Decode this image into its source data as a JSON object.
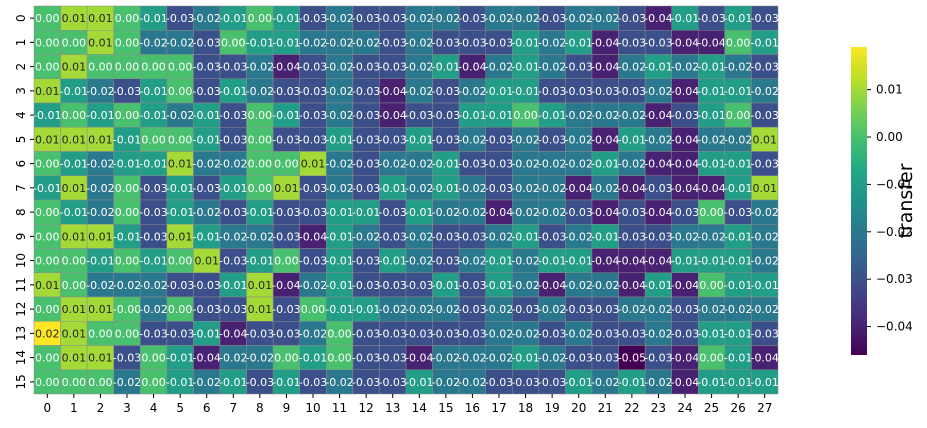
{
  "chart_data": {
    "type": "heatmap",
    "title": "",
    "xlabel": "",
    "ylabel": "",
    "x_ticks": [
      "0",
      "1",
      "2",
      "3",
      "4",
      "5",
      "6",
      "7",
      "8",
      "9",
      "10",
      "11",
      "12",
      "13",
      "14",
      "15",
      "16",
      "17",
      "18",
      "19",
      "20",
      "21",
      "22",
      "23",
      "24",
      "25",
      "26",
      "27"
    ],
    "y_ticks": [
      "0",
      "1",
      "2",
      "3",
      "4",
      "5",
      "6",
      "7",
      "8",
      "9",
      "10",
      "11",
      "12",
      "13",
      "14",
      "15"
    ],
    "colorbar": {
      "label": "transfer",
      "colormap": "viridis",
      "vmin": -0.046,
      "vmax": 0.019,
      "ticks": [
        0.01,
        0.0,
        -0.01,
        -0.02,
        -0.03,
        -0.04
      ],
      "tick_labels": [
        "0.01",
        "0.00",
        "−0.01",
        "−0.02",
        "−0.03",
        "−0.04"
      ]
    },
    "values": [
      [
        0.0,
        0.01,
        0.01,
        0.0,
        -0.01,
        -0.03,
        -0.02,
        -0.01,
        0.0,
        -0.01,
        -0.03,
        -0.02,
        -0.03,
        -0.03,
        -0.02,
        -0.02,
        -0.03,
        -0.02,
        -0.02,
        -0.03,
        -0.02,
        -0.02,
        -0.03,
        -0.04,
        -0.01,
        -0.03,
        -0.01,
        -0.03
      ],
      [
        0.0,
        0.0,
        0.01,
        0.0,
        -0.02,
        -0.02,
        -0.03,
        0.0,
        -0.01,
        -0.01,
        -0.02,
        -0.02,
        -0.02,
        -0.03,
        -0.02,
        -0.03,
        -0.03,
        -0.03,
        -0.01,
        -0.02,
        -0.01,
        -0.04,
        -0.03,
        -0.03,
        -0.04,
        -0.04,
        0.0,
        -0.01
      ],
      [
        0.0,
        0.01,
        0.0,
        0.0,
        0.0,
        0.0,
        -0.03,
        -0.03,
        -0.02,
        -0.04,
        -0.03,
        -0.02,
        -0.03,
        -0.03,
        -0.02,
        -0.01,
        -0.04,
        -0.02,
        -0.01,
        -0.02,
        -0.03,
        -0.04,
        -0.02,
        -0.01,
        -0.02,
        -0.01,
        -0.02,
        -0.03
      ],
      [
        0.01,
        -0.01,
        -0.02,
        -0.03,
        -0.01,
        0.0,
        -0.03,
        -0.01,
        -0.02,
        -0.03,
        -0.03,
        -0.02,
        -0.03,
        -0.04,
        -0.02,
        -0.03,
        -0.02,
        -0.01,
        -0.01,
        -0.03,
        -0.03,
        -0.03,
        -0.03,
        -0.02,
        -0.04,
        -0.01,
        -0.01,
        -0.02
      ],
      [
        -0.01,
        0.0,
        -0.01,
        0.0,
        -0.01,
        -0.02,
        -0.01,
        -0.03,
        0.0,
        -0.01,
        -0.03,
        -0.02,
        -0.03,
        -0.04,
        -0.03,
        -0.03,
        -0.01,
        -0.01,
        0.0,
        -0.01,
        -0.02,
        -0.02,
        -0.02,
        -0.04,
        -0.03,
        -0.01,
        0.0,
        -0.03
      ],
      [
        0.01,
        0.01,
        0.01,
        -0.01,
        0.0,
        0.0,
        -0.01,
        -0.03,
        0.0,
        -0.03,
        -0.03,
        -0.01,
        -0.03,
        -0.03,
        -0.01,
        -0.03,
        -0.02,
        -0.03,
        -0.02,
        -0.03,
        -0.02,
        -0.04,
        -0.01,
        -0.02,
        -0.04,
        -0.02,
        -0.02,
        0.01
      ],
      [
        0.0,
        -0.01,
        -0.02,
        -0.01,
        -0.01,
        0.01,
        -0.02,
        -0.02,
        0.0,
        0.0,
        0.01,
        -0.02,
        -0.03,
        -0.02,
        -0.02,
        -0.01,
        -0.03,
        -0.03,
        -0.02,
        -0.02,
        -0.02,
        -0.01,
        -0.02,
        -0.04,
        -0.04,
        -0.01,
        -0.01,
        -0.03
      ],
      [
        -0.01,
        0.01,
        -0.02,
        0.0,
        -0.03,
        -0.01,
        -0.03,
        -0.01,
        0.0,
        0.01,
        -0.03,
        -0.02,
        -0.03,
        -0.01,
        -0.02,
        -0.01,
        -0.02,
        -0.03,
        -0.02,
        -0.02,
        -0.04,
        -0.02,
        -0.04,
        -0.03,
        -0.04,
        -0.04,
        -0.01,
        0.01
      ],
      [
        0.0,
        -0.01,
        -0.02,
        0.0,
        -0.03,
        -0.01,
        -0.02,
        -0.03,
        -0.01,
        -0.03,
        -0.03,
        -0.01,
        -0.01,
        -0.03,
        -0.01,
        -0.02,
        -0.02,
        -0.04,
        -0.02,
        -0.02,
        -0.03,
        -0.04,
        -0.03,
        -0.04,
        -0.03,
        0.0,
        -0.03,
        -0.02
      ],
      [
        0.0,
        0.01,
        0.01,
        -0.01,
        -0.03,
        0.01,
        -0.01,
        -0.02,
        -0.02,
        -0.03,
        -0.04,
        -0.01,
        -0.02,
        -0.03,
        -0.02,
        -0.03,
        -0.03,
        -0.02,
        -0.01,
        -0.03,
        -0.02,
        -0.01,
        -0.03,
        -0.03,
        -0.02,
        -0.02,
        -0.01,
        -0.02
      ],
      [
        0.0,
        0.0,
        -0.01,
        0.0,
        -0.01,
        0.0,
        0.01,
        -0.03,
        -0.01,
        0.0,
        -0.03,
        -0.01,
        -0.03,
        -0.01,
        -0.02,
        -0.03,
        -0.02,
        -0.01,
        -0.02,
        -0.01,
        -0.01,
        -0.04,
        -0.04,
        -0.04,
        -0.01,
        -0.01,
        -0.01,
        -0.02
      ],
      [
        0.01,
        0.0,
        -0.02,
        -0.02,
        -0.02,
        -0.03,
        -0.03,
        -0.01,
        0.01,
        -0.04,
        -0.02,
        -0.01,
        -0.03,
        -0.03,
        -0.03,
        -0.01,
        -0.03,
        -0.01,
        -0.02,
        -0.04,
        -0.02,
        -0.02,
        -0.04,
        -0.01,
        -0.04,
        0.0,
        -0.01,
        -0.01
      ],
      [
        0.0,
        0.01,
        0.01,
        -0.0,
        -0.02,
        0.0,
        -0.03,
        -0.03,
        0.01,
        -0.03,
        0.0,
        -0.01,
        -0.01,
        -0.02,
        -0.02,
        -0.02,
        -0.03,
        -0.02,
        -0.03,
        -0.02,
        -0.03,
        -0.03,
        -0.02,
        -0.02,
        -0.03,
        -0.02,
        -0.02,
        -0.02
      ],
      [
        0.02,
        0.01,
        0.0,
        0.0,
        -0.03,
        -0.03,
        -0.01,
        -0.04,
        -0.03,
        -0.03,
        -0.02,
        0.0,
        -0.03,
        -0.03,
        -0.03,
        -0.03,
        -0.03,
        -0.02,
        -0.02,
        -0.03,
        -0.02,
        -0.03,
        -0.03,
        -0.02,
        -0.03,
        -0.01,
        -0.01,
        -0.03
      ],
      [
        0.0,
        0.01,
        0.01,
        -0.03,
        0.0,
        -0.01,
        -0.04,
        -0.02,
        -0.02,
        0.0,
        -0.01,
        0.0,
        -0.03,
        -0.03,
        -0.04,
        -0.02,
        -0.02,
        -0.02,
        -0.01,
        -0.02,
        -0.03,
        -0.03,
        -0.05,
        -0.03,
        -0.04,
        0.0,
        -0.01,
        -0.04
      ],
      [
        0.0,
        0.0,
        0.0,
        -0.02,
        0.0,
        -0.01,
        -0.02,
        -0.01,
        -0.03,
        -0.01,
        -0.03,
        -0.02,
        -0.03,
        -0.03,
        -0.01,
        -0.02,
        -0.02,
        -0.03,
        -0.03,
        -0.03,
        -0.01,
        -0.02,
        -0.01,
        -0.02,
        -0.04,
        -0.01,
        -0.01,
        -0.01
      ]
    ],
    "labels": [
      [
        "0.00",
        "0.01",
        "0.01",
        "0.00",
        "-0.01",
        "-0.03",
        "-0.02",
        "-0.01",
        "0.00",
        "-0.01",
        "-0.03",
        "-0.02",
        "-0.03",
        "-0.03",
        "-0.02",
        "-0.02",
        "-0.03",
        "-0.02",
        "-0.02",
        "-0.03",
        "-0.02",
        "-0.02",
        "-0.03",
        "-0.04",
        "-0.01",
        "-0.03",
        "-0.01",
        "-0.03"
      ],
      [
        "0.00",
        "0.00",
        "0.01",
        "0.00",
        "-0.02",
        "-0.02",
        "-0.03",
        "0.00",
        "-0.01",
        "-0.01",
        "-0.02",
        "-0.02",
        "-0.02",
        "-0.03",
        "-0.02",
        "-0.03",
        "-0.03",
        "-0.03",
        "-0.01",
        "-0.02",
        "-0.01",
        "-0.04",
        "-0.03",
        "-0.03",
        "-0.04",
        "-0.04",
        "0.00",
        "-0.01"
      ],
      [
        "0.00",
        "0.01",
        "0.00",
        "0.00",
        "0.00",
        "0.00",
        "-0.03",
        "-0.03",
        "-0.02",
        "-0.04",
        "-0.03",
        "-0.02",
        "-0.03",
        "-0.03",
        "-0.02",
        "-0.01",
        "-0.04",
        "-0.02",
        "-0.01",
        "-0.02",
        "-0.03",
        "-0.04",
        "-0.02",
        "-0.01",
        "-0.02",
        "-0.01",
        "-0.02",
        "-0.03"
      ],
      [
        "0.01",
        "-0.01",
        "-0.02",
        "-0.03",
        "-0.01",
        "0.00",
        "-0.03",
        "-0.01",
        "-0.02",
        "-0.03",
        "-0.03",
        "-0.02",
        "-0.03",
        "-0.04",
        "-0.02",
        "-0.03",
        "-0.02",
        "-0.01",
        "-0.01",
        "-0.03",
        "-0.03",
        "-0.03",
        "-0.03",
        "-0.02",
        "-0.04",
        "-0.01",
        "-0.01",
        "-0.02"
      ],
      [
        "-0.01",
        "0.00",
        "-0.01",
        "0.00",
        "-0.01",
        "-0.02",
        "-0.01",
        "-0.03",
        "0.00",
        "-0.01",
        "-0.03",
        "-0.02",
        "-0.03",
        "-0.04",
        "-0.03",
        "-0.03",
        "-0.01",
        "-0.01",
        "0.00",
        "-0.01",
        "-0.02",
        "-0.02",
        "-0.02",
        "-0.04",
        "-0.03",
        "-0.01",
        "0.00",
        "-0.03"
      ],
      [
        "0.01",
        "0.01",
        "0.01",
        "-0.01",
        "0.00",
        "0.00",
        "-0.01",
        "-0.03",
        "0.00",
        "-0.03",
        "-0.03",
        "-0.01",
        "-0.03",
        "-0.03",
        "-0.01",
        "-0.03",
        "-0.02",
        "-0.03",
        "-0.02",
        "-0.03",
        "-0.02",
        "-0.04",
        "-0.01",
        "-0.02",
        "-0.04",
        "-0.02",
        "-0.02",
        "0.01"
      ],
      [
        "0.00",
        "-0.01",
        "-0.02",
        "-0.01",
        "-0.01",
        "0.01",
        "-0.02",
        "-0.02",
        "0.00",
        "0.00",
        "0.01",
        "-0.02",
        "-0.03",
        "-0.02",
        "-0.02",
        "-0.01",
        "-0.03",
        "-0.03",
        "-0.02",
        "-0.02",
        "-0.02",
        "-0.01",
        "-0.02",
        "-0.04",
        "-0.04",
        "-0.01",
        "-0.01",
        "-0.03"
      ],
      [
        "-0.01",
        "0.01",
        "-0.02",
        "0.00",
        "-0.03",
        "-0.01",
        "-0.03",
        "-0.01",
        "0.00",
        "0.01",
        "-0.03",
        "-0.02",
        "-0.03",
        "-0.01",
        "-0.02",
        "-0.01",
        "-0.02",
        "-0.03",
        "-0.02",
        "-0.02",
        "-0.04",
        "-0.02",
        "-0.04",
        "-0.03",
        "-0.04",
        "-0.04",
        "-0.01",
        "0.01"
      ],
      [
        "0.00",
        "-0.01",
        "-0.02",
        "0.00",
        "-0.03",
        "-0.01",
        "-0.02",
        "-0.03",
        "-0.01",
        "-0.03",
        "-0.03",
        "-0.01",
        "-0.01",
        "-0.03",
        "-0.01",
        "-0.02",
        "-0.02",
        "-0.04",
        "-0.02",
        "-0.02",
        "-0.03",
        "-0.04",
        "-0.03",
        "-0.04",
        "-0.03",
        "0.00",
        "-0.03",
        "-0.02"
      ],
      [
        "0.00",
        "0.01",
        "0.01",
        "-0.01",
        "-0.03",
        "0.01",
        "-0.01",
        "-0.02",
        "-0.02",
        "-0.03",
        "-0.04",
        "-0.01",
        "-0.02",
        "-0.03",
        "-0.02",
        "-0.03",
        "-0.03",
        "-0.02",
        "-0.01",
        "-0.03",
        "-0.02",
        "-0.01",
        "-0.03",
        "-0.03",
        "-0.02",
        "-0.02",
        "-0.01",
        "-0.02"
      ],
      [
        "0.00",
        "0.00",
        "-0.01",
        "0.00",
        "-0.01",
        "0.00",
        "0.01",
        "-0.03",
        "-0.01",
        "0.00",
        "-0.03",
        "-0.01",
        "-0.03",
        "-0.01",
        "-0.02",
        "-0.03",
        "-0.02",
        "-0.01",
        "-0.02",
        "-0.01",
        "-0.01",
        "-0.04",
        "-0.04",
        "-0.04",
        "-0.01",
        "-0.01",
        "-0.01",
        "-0.02"
      ],
      [
        "0.01",
        "0.00",
        "-0.02",
        "-0.02",
        "-0.02",
        "-0.03",
        "-0.03",
        "-0.01",
        "0.01",
        "-0.04",
        "-0.02",
        "-0.01",
        "-0.03",
        "-0.03",
        "-0.03",
        "-0.01",
        "-0.03",
        "-0.01",
        "-0.02",
        "-0.04",
        "-0.02",
        "-0.02",
        "-0.04",
        "-0.01",
        "-0.04",
        "0.00",
        "-0.01",
        "-0.01"
      ],
      [
        "0.00",
        "0.01",
        "0.01",
        "-0.00",
        "-0.02",
        "0.00",
        "-0.03",
        "-0.03",
        "0.01",
        "-0.03",
        "0.00",
        "-0.01",
        "-0.01",
        "-0.02",
        "-0.02",
        "-0.02",
        "-0.03",
        "-0.02",
        "-0.03",
        "-0.02",
        "-0.03",
        "-0.03",
        "-0.02",
        "-0.02",
        "-0.03",
        "-0.02",
        "-0.02",
        "-0.02"
      ],
      [
        "0.02",
        "0.01",
        "0.00",
        "0.00",
        "-0.03",
        "-0.03",
        "-0.01",
        "-0.04",
        "-0.03",
        "-0.03",
        "-0.02",
        "0.00",
        "-0.03",
        "-0.03",
        "-0.03",
        "-0.03",
        "-0.03",
        "-0.02",
        "-0.02",
        "-0.03",
        "-0.02",
        "-0.03",
        "-0.03",
        "-0.02",
        "-0.03",
        "-0.01",
        "-0.01",
        "-0.03"
      ],
      [
        "0.00",
        "0.01",
        "0.01",
        "-0.03",
        "0.00",
        "-0.01",
        "-0.04",
        "-0.02",
        "-0.02",
        "0.00",
        "-0.01",
        "0.00",
        "-0.03",
        "-0.03",
        "-0.04",
        "-0.02",
        "-0.02",
        "-0.02",
        "-0.01",
        "-0.02",
        "-0.03",
        "-0.03",
        "-0.05",
        "-0.03",
        "-0.04",
        "0.00",
        "-0.01",
        "-0.04"
      ],
      [
        "0.00",
        "0.00",
        "0.00",
        "-0.02",
        "0.00",
        "-0.01",
        "-0.02",
        "-0.01",
        "-0.03",
        "-0.01",
        "-0.03",
        "-0.02",
        "-0.03",
        "-0.03",
        "-0.01",
        "-0.02",
        "-0.02",
        "-0.03",
        "-0.03",
        "-0.03",
        "-0.01",
        "-0.02",
        "-0.01",
        "-0.02",
        "-0.04",
        "-0.01",
        "-0.01",
        "-0.01"
      ]
    ]
  }
}
